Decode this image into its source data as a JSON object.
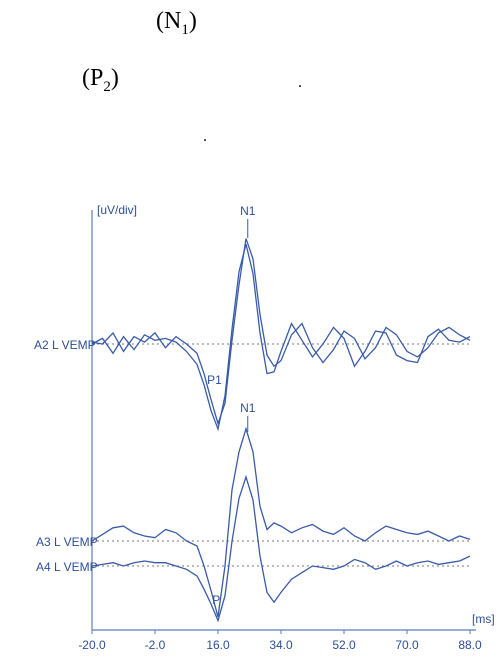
{
  "document": {
    "line1": {
      "open": "(N",
      "sub": "1",
      "close": ")"
    },
    "line2": {
      "open": "(P",
      "sub": "2",
      "close": ")"
    },
    "dot1": ".",
    "dot2": "."
  },
  "chart_data": {
    "type": "line",
    "unit_label": "[uV/div]",
    "x_unit_label": "[ms]",
    "x_ticks": [
      "-20.0",
      "-2.0",
      "16.0",
      "34.0",
      "52.0",
      "70.0",
      "88.0"
    ],
    "xlim": [
      -20,
      88
    ],
    "colors": {
      "trace": "#3a5ba8",
      "axis": "#5a7bc0",
      "text": "#2e4f9a",
      "baseline": "#7a7a7a"
    },
    "groups": [
      {
        "name": "top",
        "baseline_label": "A2 L VEMP",
        "peak_labels": [
          {
            "text": "N1",
            "x": 24.5
          },
          {
            "text": "P1",
            "x": 15.0
          }
        ],
        "series": [
          {
            "name": "A2 L VEMP",
            "x": [
              -20,
              -17,
              -14,
              -11,
              -8,
              -5,
              -2,
              1,
              4,
              7,
              10,
              12,
              14,
              16,
              18,
              20,
              22,
              24,
              26,
              28,
              30,
              32,
              34,
              37,
              40,
              43,
              46,
              49,
              52,
              55,
              58,
              61,
              64,
              67,
              70,
              73,
              76,
              79,
              82,
              85,
              88
            ],
            "y": [
              0.0,
              0.3,
              -0.5,
              0.4,
              -0.3,
              0.5,
              0.2,
              0.3,
              0.1,
              -0.4,
              -1.1,
              -2.2,
              -3.6,
              -4.6,
              -2.8,
              0.8,
              3.9,
              5.4,
              3.8,
              0.6,
              -1.6,
              -1.5,
              -0.4,
              1.1,
              0.2,
              -0.7,
              0.0,
              0.9,
              0.3,
              -1.2,
              -0.4,
              0.7,
              0.6,
              -0.6,
              -0.9,
              -1.0,
              0.4,
              0.8,
              0.2,
              0.1,
              0.4
            ]
          },
          {
            "name": "A2 L VEMP",
            "x": [
              -20,
              -17,
              -14,
              -11,
              -8,
              -5,
              -2,
              1,
              4,
              7,
              10,
              12,
              14,
              16,
              18,
              20,
              22,
              24,
              26,
              28,
              30,
              32,
              34,
              37,
              40,
              43,
              46,
              49,
              52,
              55,
              58,
              61,
              64,
              67,
              70,
              73,
              76,
              79,
              82,
              85,
              88
            ],
            "y": [
              0.1,
              0.0,
              0.6,
              -0.4,
              0.4,
              0.1,
              0.6,
              -0.2,
              0.4,
              0.0,
              -0.5,
              -1.6,
              -3.0,
              -4.3,
              -3.2,
              0.2,
              3.2,
              5.7,
              4.6,
              1.6,
              -0.6,
              -1.2,
              -0.9,
              0.5,
              1.1,
              -0.2,
              -1.0,
              -0.3,
              0.7,
              0.3,
              -0.8,
              -0.2,
              0.9,
              0.5,
              -0.4,
              -0.7,
              -0.2,
              0.6,
              0.9,
              0.5,
              0.2
            ]
          }
        ]
      },
      {
        "name": "bottom",
        "baseline_labels": [
          "A3 L VEMP",
          "A4 L VEMP"
        ],
        "peak_labels": [
          {
            "text": "N1",
            "x": 24.5
          },
          {
            "text": "P",
            "x": 15.5
          }
        ],
        "series": [
          {
            "name": "A3 L VEMP",
            "x": [
              -20,
              -17,
              -14,
              -11,
              -8,
              -5,
              -2,
              1,
              4,
              7,
              10,
              12,
              14,
              16,
              18,
              20,
              22,
              24,
              26,
              28,
              30,
              32,
              34,
              37,
              40,
              43,
              46,
              49,
              52,
              55,
              58,
              61,
              64,
              67,
              70,
              73,
              76,
              79,
              82,
              85,
              88
            ],
            "y": [
              0.0,
              0.4,
              0.8,
              0.9,
              0.5,
              0.3,
              0.2,
              0.7,
              0.5,
              0.0,
              -0.3,
              -1.5,
              -3.0,
              -4.6,
              -1.5,
              3.1,
              5.4,
              6.8,
              5.4,
              2.1,
              0.7,
              1.1,
              0.9,
              0.5,
              0.8,
              1.0,
              0.6,
              0.4,
              0.8,
              0.3,
              0.0,
              0.5,
              0.9,
              0.7,
              0.5,
              0.4,
              0.6,
              0.3,
              0.0,
              0.3,
              0.1
            ]
          },
          {
            "name": "A4 L VEMP",
            "x": [
              -20,
              -17,
              -14,
              -11,
              -8,
              -5,
              -2,
              1,
              4,
              7,
              10,
              12,
              14,
              16,
              18,
              20,
              22,
              24,
              26,
              28,
              30,
              32,
              34,
              37,
              40,
              43,
              46,
              49,
              52,
              55,
              58,
              61,
              64,
              67,
              70,
              73,
              76,
              79,
              82,
              85,
              88
            ],
            "y": [
              0.0,
              0.1,
              0.2,
              0.0,
              0.2,
              0.3,
              0.2,
              0.2,
              0.0,
              -0.2,
              -0.6,
              -1.4,
              -2.3,
              -3.3,
              -1.8,
              1.5,
              4.1,
              5.4,
              4.0,
              0.6,
              -1.6,
              -2.2,
              -1.6,
              -0.8,
              -0.4,
              0.0,
              -0.1,
              -0.2,
              0.0,
              0.4,
              0.2,
              -0.2,
              0.0,
              0.3,
              0.0,
              0.2,
              0.3,
              0.1,
              0.2,
              0.3,
              0.6
            ]
          }
        ]
      }
    ]
  }
}
